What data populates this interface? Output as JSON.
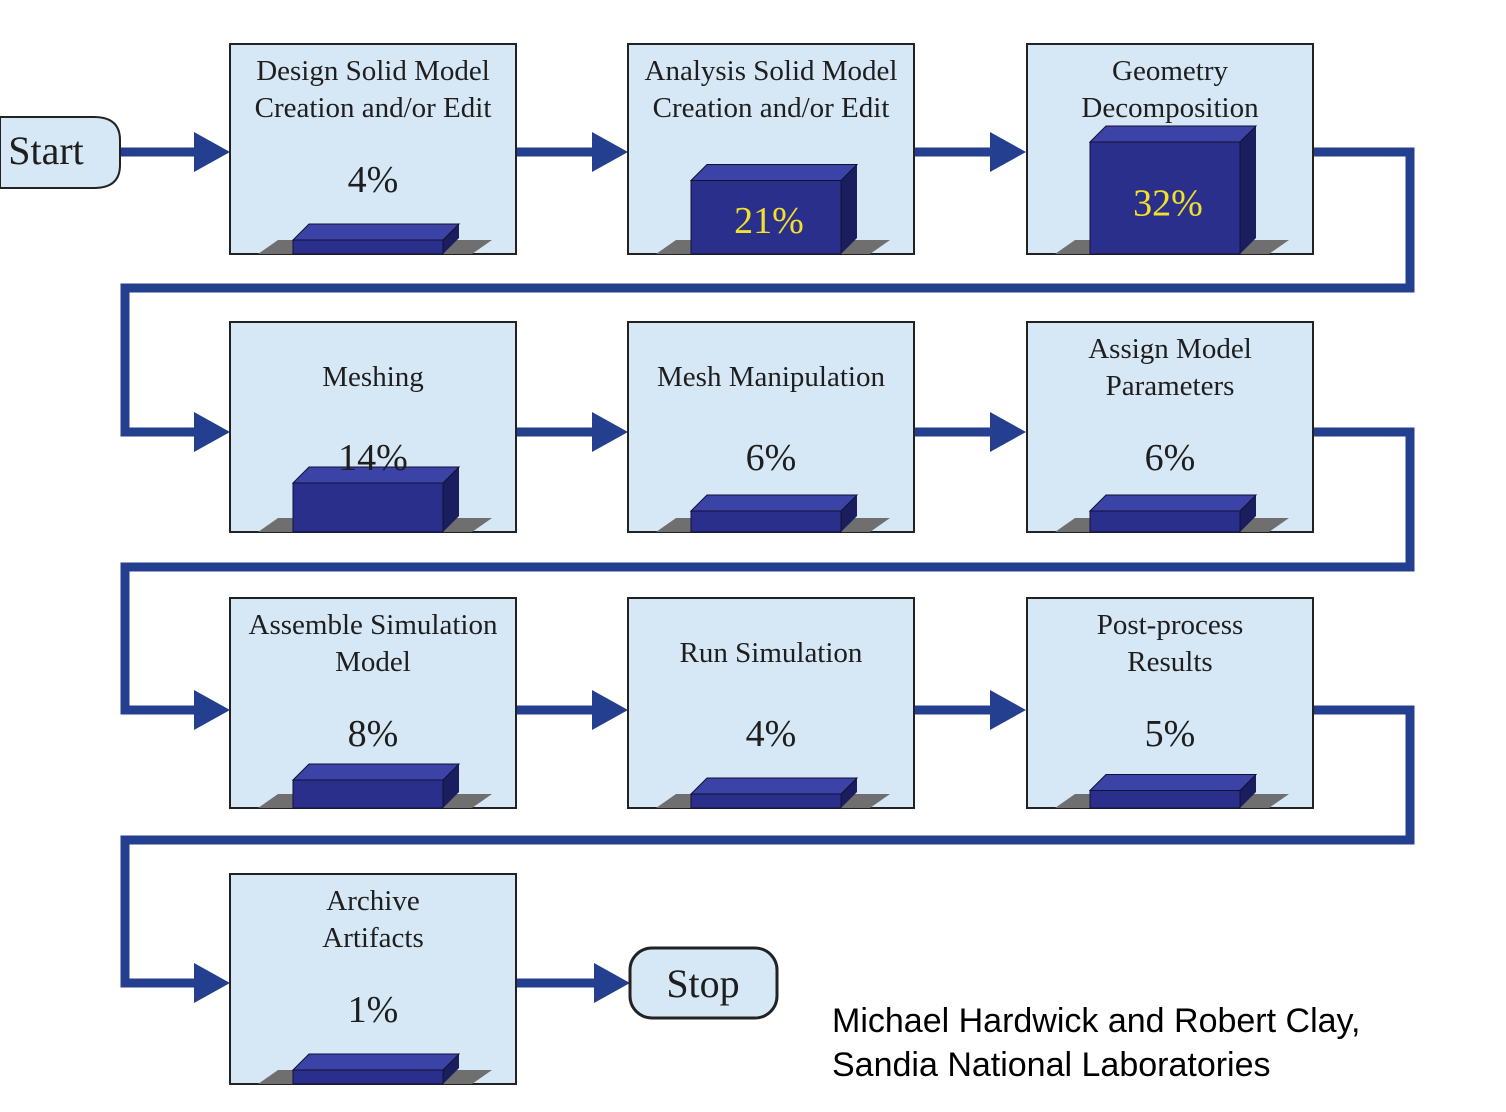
{
  "terminals": {
    "start": "Start",
    "stop": "Stop"
  },
  "stages": [
    {
      "lines": [
        "Design Solid Model",
        "Creation and/or Edit"
      ],
      "percent": "4%",
      "value": 4
    },
    {
      "lines": [
        "Analysis Solid Model",
        "Creation and/or Edit"
      ],
      "percent": "21%",
      "value": 21
    },
    {
      "lines": [
        "Geometry",
        "Decomposition"
      ],
      "percent": "32%",
      "value": 32
    },
    {
      "lines": [
        "Meshing"
      ],
      "percent": "14%",
      "value": 14
    },
    {
      "lines": [
        "Mesh Manipulation"
      ],
      "percent": "6%",
      "value": 6
    },
    {
      "lines": [
        "Assign Model",
        "Parameters"
      ],
      "percent": "6%",
      "value": 6
    },
    {
      "lines": [
        "Assemble Simulation",
        "Model"
      ],
      "percent": "8%",
      "value": 8
    },
    {
      "lines": [
        "Run Simulation"
      ],
      "percent": "4%",
      "value": 4
    },
    {
      "lines": [
        "Post-process",
        "Results"
      ],
      "percent": "5%",
      "value": 5
    },
    {
      "lines": [
        "Archive",
        "Artifacts"
      ],
      "percent": "1%",
      "value": 1
    }
  ],
  "credit": {
    "line1": "Michael Hardwick and Robert Clay,",
    "line2": "Sandia National Laboratories"
  },
  "colors": {
    "box_fill": "#d6e7f5",
    "box_border": "#222222",
    "arrow": "#243f8f",
    "bar_front": "#2a2f8c",
    "bar_top": "#3b43a6",
    "bar_side": "#1a1d5e",
    "floor": "#6f6f6f",
    "percent_inside": "#f2e02a",
    "terminal_fill": "#d6e7f5"
  }
}
